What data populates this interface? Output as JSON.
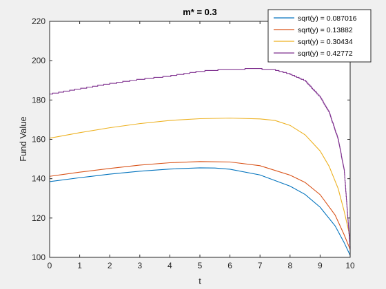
{
  "chart_data": {
    "type": "line",
    "title": "m* = 0.3",
    "xlabel": "t",
    "ylabel": "Fund Value",
    "xlim": [
      0,
      10
    ],
    "ylim": [
      100,
      220
    ],
    "xticks": [
      0,
      1,
      2,
      3,
      4,
      5,
      6,
      7,
      8,
      9,
      10
    ],
    "yticks": [
      100,
      120,
      140,
      160,
      180,
      200,
      220
    ],
    "grid": false,
    "legend_position": "top-right",
    "series": [
      {
        "name": "sqrt(y) = 0.087016",
        "color": "#0072bd",
        "step": false,
        "x": [
          0,
          1,
          2,
          3,
          4,
          5,
          5.5,
          6,
          7,
          8,
          8.5,
          9,
          9.5,
          9.8,
          10
        ],
        "y": [
          138.5,
          140.5,
          142.3,
          143.8,
          144.9,
          145.5,
          145.4,
          144.8,
          141.9,
          136.2,
          132,
          125.5,
          116,
          107.5,
          101
        ]
      },
      {
        "name": "sqrt(y) = 0.13882",
        "color": "#d95319",
        "step": false,
        "x": [
          0,
          1,
          2,
          3,
          4,
          5,
          6,
          7,
          8,
          8.5,
          9,
          9.5,
          9.8,
          10
        ],
        "y": [
          141.2,
          143.3,
          145.2,
          146.9,
          148.1,
          148.7,
          148.5,
          146.6,
          141.8,
          138.1,
          131.9,
          121.5,
          111.5,
          104
        ]
      },
      {
        "name": "sqrt(y) = 0.30434",
        "color": "#edb120",
        "step": false,
        "x": [
          0,
          1,
          2,
          3,
          4,
          5,
          6,
          7,
          7.5,
          8,
          8.5,
          9,
          9.3,
          9.6,
          9.8,
          10
        ],
        "y": [
          160.6,
          163.4,
          165.9,
          168,
          169.6,
          170.5,
          170.8,
          170.4,
          169.6,
          167.1,
          162.3,
          154.1,
          146.3,
          135,
          123.5,
          110
        ]
      },
      {
        "name": "sqrt(y) = 0.42772",
        "color": "#7e2f8e",
        "step": true,
        "x": [
          0,
          1,
          2,
          3,
          4,
          5,
          6,
          7,
          7.5,
          8,
          8.5,
          9,
          9.3,
          9.6,
          9.8,
          10
        ],
        "y": [
          183,
          185.7,
          188.3,
          190.5,
          192.2,
          194.6,
          195.7,
          195.8,
          195.3,
          193.2,
          189.8,
          181.6,
          173.8,
          160,
          144.5,
          104
        ]
      }
    ]
  }
}
